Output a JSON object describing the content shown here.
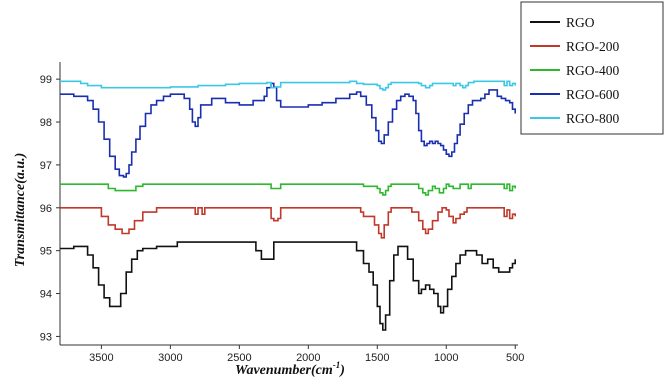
{
  "chart_data": {
    "type": "line",
    "title": "",
    "xlabel": "Wavenumber(cm",
    "xlabel_sup": "-1",
    "xlabel_close": ")",
    "ylabel": "Transmittance(a.u.)",
    "xlim": [
      3800,
      480
    ],
    "ylim": [
      92.8,
      99.4
    ],
    "x_reversed": true,
    "grid": false,
    "legend_position": "top-right-outside",
    "x_ticks": [
      "3500",
      "3000",
      "2500",
      "2000",
      "1500",
      "1000",
      "500"
    ],
    "x_tick_values": [
      3500,
      3000,
      2500,
      2000,
      1500,
      1000,
      500
    ],
    "y_ticks": [
      "93",
      "94",
      "95",
      "96",
      "97",
      "98",
      "99"
    ],
    "y_tick_values": [
      93,
      94,
      95,
      96,
      97,
      98,
      99
    ],
    "series": [
      {
        "name": "RGO",
        "color": "#111111",
        "x": [
          3800,
          3700,
          3600,
          3560,
          3520,
          3480,
          3440,
          3400,
          3360,
          3320,
          3280,
          3240,
          3200,
          3150,
          3100,
          3000,
          2950,
          2900,
          2700,
          2400,
          2380,
          2340,
          2300,
          2250,
          2000,
          1800,
          1700,
          1650,
          1600,
          1560,
          1530,
          1500,
          1480,
          1460,
          1440,
          1410,
          1380,
          1350,
          1320,
          1280,
          1240,
          1200,
          1180,
          1150,
          1120,
          1090,
          1060,
          1040,
          1020,
          990,
          960,
          930,
          900,
          860,
          820,
          780,
          740,
          700,
          660,
          620,
          580,
          540,
          520,
          500
        ],
        "values": [
          95.05,
          95.1,
          94.9,
          94.6,
          94.2,
          93.9,
          93.7,
          93.7,
          94.0,
          94.5,
          94.8,
          95.0,
          95.05,
          95.05,
          95.1,
          95.1,
          95.2,
          95.2,
          95.2,
          95.2,
          95.0,
          94.8,
          94.8,
          95.2,
          95.2,
          95.2,
          95.2,
          95.0,
          94.7,
          94.5,
          94.2,
          93.7,
          93.3,
          93.15,
          93.5,
          94.3,
          94.9,
          95.1,
          95.1,
          94.8,
          94.3,
          94.0,
          94.1,
          94.2,
          94.1,
          94.0,
          93.7,
          93.55,
          93.7,
          94.1,
          94.4,
          94.7,
          94.9,
          95.0,
          95.0,
          94.9,
          94.7,
          94.8,
          94.6,
          94.5,
          94.5,
          94.6,
          94.7,
          94.8
        ]
      },
      {
        "name": "RGO-200",
        "color": "#c0392b",
        "x": [
          3800,
          3600,
          3500,
          3450,
          3400,
          3350,
          3300,
          3260,
          3200,
          3100,
          3000,
          2850,
          2820,
          2800,
          2770,
          2750,
          2700,
          2300,
          2270,
          2250,
          2220,
          2200,
          1800,
          1650,
          1620,
          1600,
          1520,
          1490,
          1470,
          1450,
          1420,
          1400,
          1300,
          1250,
          1200,
          1170,
          1150,
          1130,
          1100,
          1060,
          1030,
          1000,
          980,
          950,
          930,
          900,
          870,
          850,
          830,
          800,
          700,
          600,
          580,
          560,
          540,
          520,
          500
        ],
        "values": [
          96.0,
          96.0,
          95.8,
          95.6,
          95.5,
          95.4,
          95.5,
          95.7,
          95.9,
          96.0,
          96.0,
          96.0,
          95.85,
          96.0,
          95.85,
          96.0,
          96.0,
          96.0,
          95.75,
          95.7,
          95.75,
          96.0,
          96.0,
          96.0,
          95.9,
          95.8,
          95.6,
          95.4,
          95.3,
          95.6,
          95.9,
          96.0,
          96.0,
          95.9,
          95.7,
          95.5,
          95.4,
          95.5,
          95.7,
          95.9,
          96.0,
          95.95,
          95.8,
          95.65,
          95.75,
          95.85,
          95.9,
          96.0,
          96.0,
          96.0,
          96.0,
          96.0,
          95.8,
          95.95,
          95.75,
          95.85,
          95.8
        ]
      },
      {
        "name": "RGO-400",
        "color": "#2eb82e",
        "x": [
          3800,
          3500,
          3450,
          3400,
          3300,
          3250,
          3200,
          2300,
          2270,
          2240,
          2200,
          1650,
          1600,
          1500,
          1480,
          1460,
          1440,
          1420,
          1400,
          1250,
          1200,
          1170,
          1150,
          1130,
          1100,
          1080,
          1050,
          1020,
          1000,
          980,
          950,
          900,
          860,
          840,
          820,
          800,
          600,
          580,
          560,
          540,
          520,
          500
        ],
        "values": [
          96.55,
          96.55,
          96.45,
          96.4,
          96.4,
          96.5,
          96.55,
          96.55,
          96.45,
          96.45,
          96.55,
          96.55,
          96.5,
          96.45,
          96.35,
          96.3,
          96.4,
          96.5,
          96.55,
          96.55,
          96.45,
          96.35,
          96.3,
          96.4,
          96.5,
          96.45,
          96.35,
          96.45,
          96.55,
          96.5,
          96.45,
          96.55,
          96.55,
          96.45,
          96.55,
          96.55,
          96.55,
          96.45,
          96.55,
          96.4,
          96.5,
          96.45
        ]
      },
      {
        "name": "RGO-600",
        "color": "#1a2fb0",
        "x": [
          3800,
          3750,
          3700,
          3650,
          3600,
          3560,
          3520,
          3480,
          3440,
          3400,
          3370,
          3340,
          3320,
          3300,
          3280,
          3250,
          3220,
          3180,
          3140,
          3100,
          3050,
          3000,
          2950,
          2900,
          2860,
          2840,
          2820,
          2800,
          2780,
          2700,
          2600,
          2500,
          2400,
          2320,
          2300,
          2270,
          2250,
          2230,
          2200,
          2100,
          2000,
          1900,
          1800,
          1700,
          1650,
          1620,
          1580,
          1540,
          1510,
          1490,
          1470,
          1450,
          1420,
          1390,
          1360,
          1330,
          1300,
          1270,
          1240,
          1220,
          1200,
          1180,
          1160,
          1140,
          1120,
          1100,
          1080,
          1060,
          1040,
          1020,
          1000,
          980,
          960,
          940,
          920,
          900,
          870,
          840,
          810,
          780,
          750,
          720,
          690,
          660,
          630,
          600,
          570,
          540,
          520,
          500
        ],
        "values": [
          98.65,
          98.65,
          98.6,
          98.6,
          98.5,
          98.3,
          98.0,
          97.6,
          97.2,
          96.9,
          96.75,
          96.72,
          96.8,
          97.0,
          97.3,
          97.6,
          97.9,
          98.2,
          98.4,
          98.5,
          98.6,
          98.65,
          98.65,
          98.55,
          98.3,
          98.0,
          97.9,
          98.1,
          98.4,
          98.55,
          98.45,
          98.4,
          98.5,
          98.6,
          98.8,
          98.9,
          98.8,
          98.5,
          98.35,
          98.35,
          98.4,
          98.45,
          98.55,
          98.65,
          98.7,
          98.6,
          98.4,
          98.1,
          97.8,
          97.55,
          97.5,
          97.7,
          98.0,
          98.3,
          98.5,
          98.6,
          98.65,
          98.6,
          98.5,
          98.2,
          97.8,
          97.55,
          97.45,
          97.5,
          97.55,
          97.5,
          97.55,
          97.5,
          97.45,
          97.35,
          97.25,
          97.2,
          97.3,
          97.5,
          97.7,
          97.95,
          98.2,
          98.4,
          98.5,
          98.5,
          98.55,
          98.65,
          98.75,
          98.75,
          98.6,
          98.55,
          98.5,
          98.45,
          98.3,
          98.2
        ]
      },
      {
        "name": "RGO-800",
        "color": "#3cc7e6",
        "x": [
          3800,
          3700,
          3650,
          3600,
          3500,
          3400,
          3300,
          3200,
          3000,
          2800,
          2600,
          2500,
          2300,
          2270,
          2240,
          2200,
          1700,
          1650,
          1600,
          1500,
          1480,
          1460,
          1440,
          1420,
          1400,
          1200,
          1180,
          1150,
          1120,
          1100,
          1000,
          950,
          930,
          900,
          880,
          860,
          840,
          800,
          700,
          600,
          580,
          560,
          540,
          520,
          500
        ],
        "values": [
          98.95,
          98.95,
          98.9,
          98.85,
          98.8,
          98.8,
          98.8,
          98.8,
          98.82,
          98.85,
          98.88,
          98.9,
          98.92,
          98.8,
          98.82,
          98.92,
          98.95,
          98.9,
          98.88,
          98.85,
          98.78,
          98.75,
          98.8,
          98.88,
          98.92,
          98.9,
          98.85,
          98.8,
          98.85,
          98.9,
          98.9,
          98.85,
          98.9,
          98.85,
          98.8,
          98.85,
          98.92,
          98.95,
          98.95,
          98.95,
          98.85,
          98.95,
          98.85,
          98.9,
          98.85
        ]
      }
    ]
  }
}
